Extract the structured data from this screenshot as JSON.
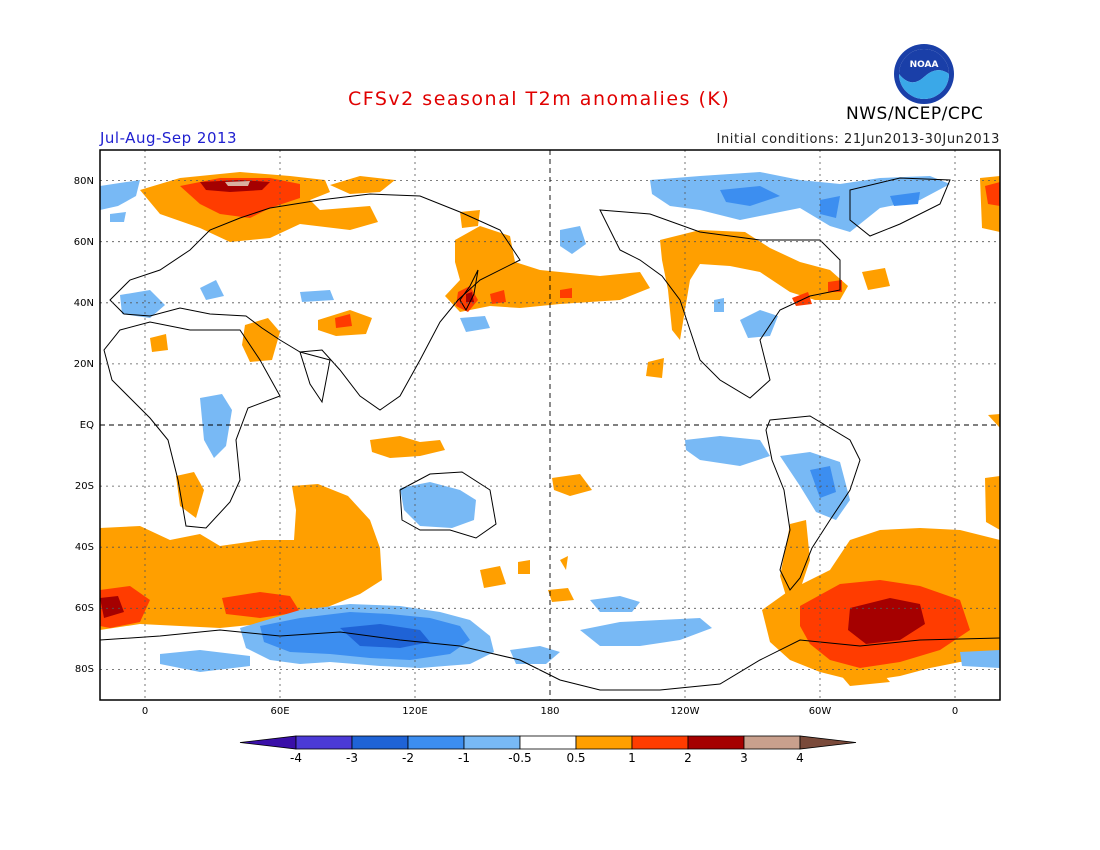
{
  "header": {
    "title": "CFSv2 seasonal T2m anomalies (K)",
    "season": "Jul-Aug-Sep 2013",
    "initial_conditions": "Initial conditions: 21Jun2013-30Jun2013",
    "agency": "NWS/NCEP/CPC",
    "logo_text": "NOAA"
  },
  "map": {
    "projection": "cylindrical equidistant",
    "lon_range": [
      -20,
      380
    ],
    "lat_range": [
      -90,
      90
    ],
    "lat_ticks": [
      "80N",
      "60N",
      "40N",
      "20N",
      "EQ",
      "20S",
      "40S",
      "60S",
      "80S"
    ],
    "lon_ticks": [
      "0",
      "60E",
      "120E",
      "180",
      "120W",
      "60W",
      "0"
    ],
    "grid": "dotted every 30 degrees"
  },
  "legend": {
    "labels": [
      "-4",
      "-3",
      "-2",
      "-1",
      "-0.5",
      "0.5",
      "1",
      "2",
      "3",
      "4"
    ],
    "colors": [
      "#3a0fa8",
      "#4b3ad6",
      "#1f63d6",
      "#3c8ef0",
      "#78b9f5",
      "#ffffff",
      "#ff9f00",
      "#ff3c00",
      "#a50000",
      "#c9a08d",
      "#7a4a3a"
    ]
  }
}
